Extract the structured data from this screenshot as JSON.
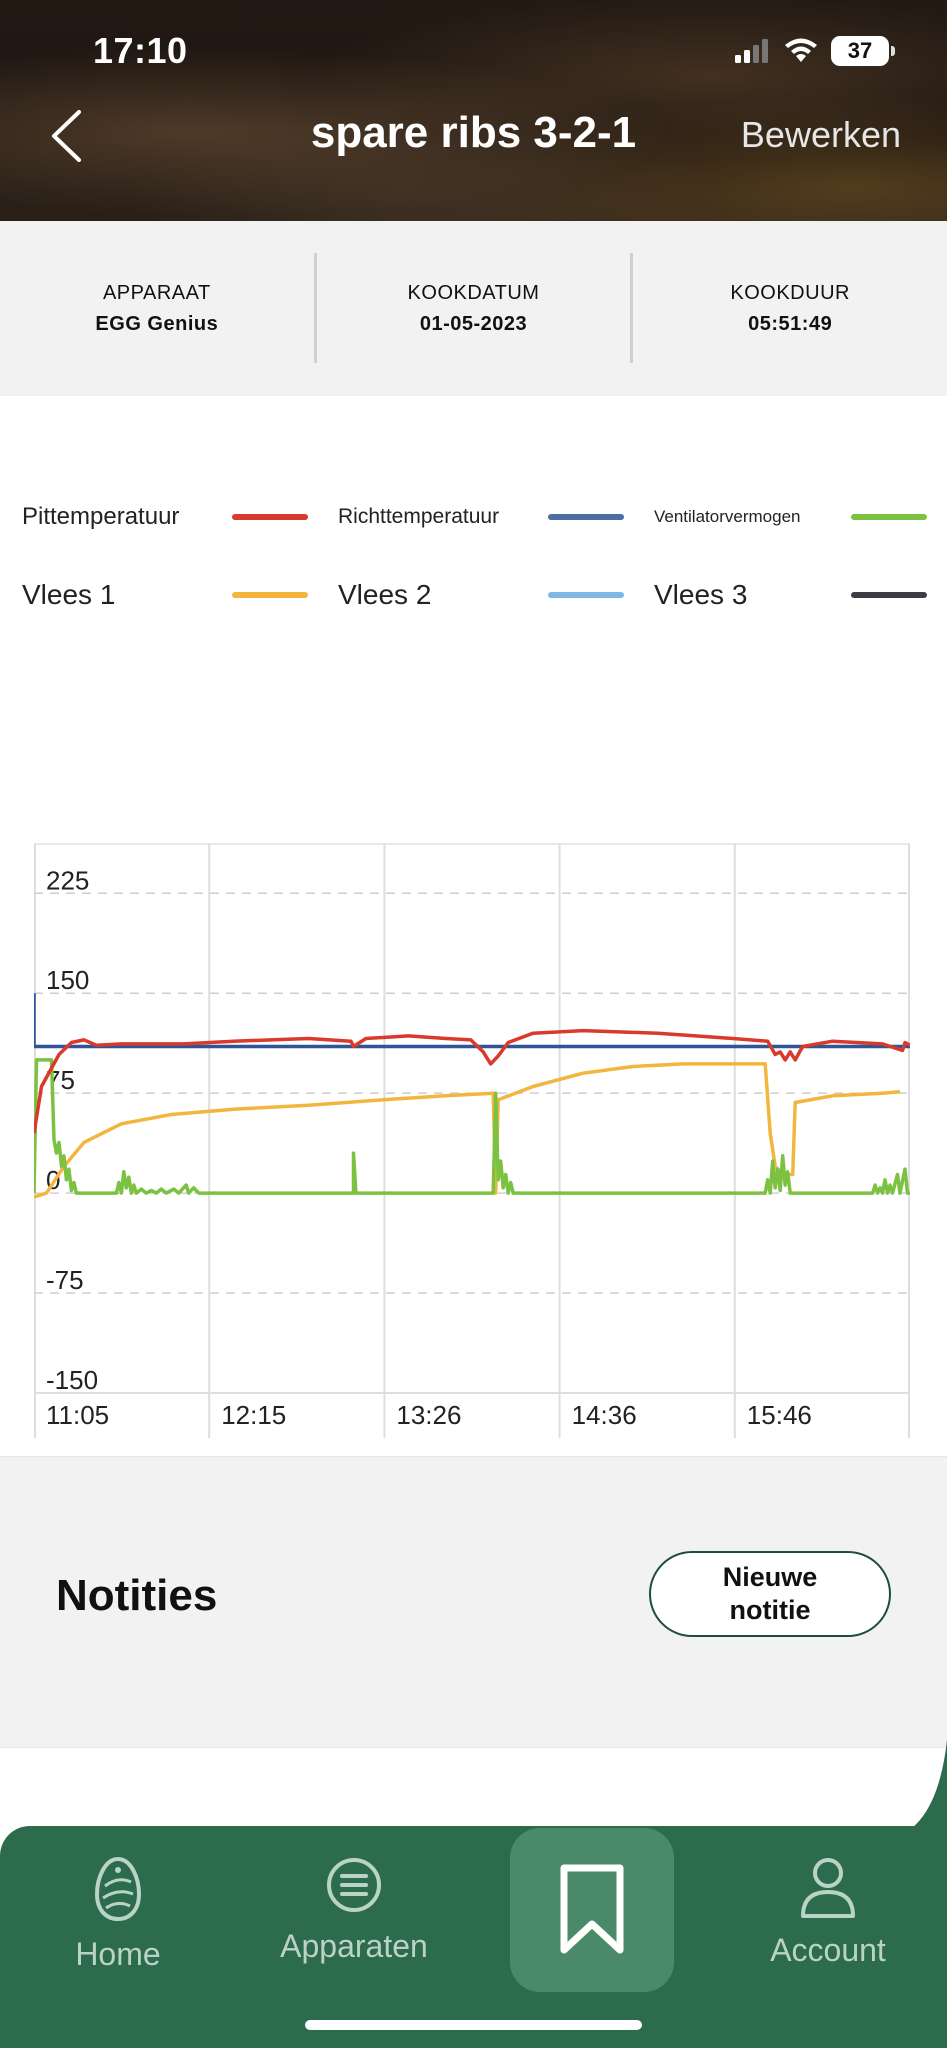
{
  "status_bar": {
    "time": "17:10",
    "battery": "37"
  },
  "header": {
    "title": "spare ribs 3-2-1",
    "edit_label": "Bewerken"
  },
  "info": [
    {
      "label": "APPARAAT",
      "value": "EGG Genius"
    },
    {
      "label": "KOOKDATUM",
      "value": "01-05-2023"
    },
    {
      "label": "KOOKDUUR",
      "value": "05:51:49"
    }
  ],
  "legend": [
    {
      "label": "Pittemperatuur",
      "color": "#d93a2b"
    },
    {
      "label": "Richttemperatuur",
      "color": "#4b6fa5"
    },
    {
      "label": "Ventilatorvermogen",
      "color": "#7cc242"
    },
    {
      "label": "Vlees 1",
      "color": "#f2b63f"
    },
    {
      "label": "Vlees 2",
      "color": "#7fb8e4"
    },
    {
      "label": "Vlees 3",
      "color": "#3a3d42"
    }
  ],
  "chart_data": {
    "type": "line",
    "x_ticks": [
      "11:05",
      "12:15",
      "13:26",
      "14:36",
      "15:46"
    ],
    "x_range_minutes": [
      0,
      351
    ],
    "y_ticks": [
      225,
      150,
      75,
      0,
      -75,
      -150
    ],
    "ylim": [
      -150,
      225
    ],
    "grid": true,
    "legend": "top",
    "series": [
      {
        "name": "Richttemperatuur",
        "color": "#2f5597",
        "points": [
          [
            0,
            150
          ],
          [
            0,
            110
          ],
          [
            351,
            110
          ]
        ]
      },
      {
        "name": "Pittemperatuur",
        "color": "#d93a2b",
        "points": [
          [
            0,
            45
          ],
          [
            3,
            80
          ],
          [
            10,
            104
          ],
          [
            15,
            113
          ],
          [
            20,
            115
          ],
          [
            25,
            111
          ],
          [
            35,
            112
          ],
          [
            60,
            112
          ],
          [
            80,
            114
          ],
          [
            110,
            116
          ],
          [
            127,
            114
          ],
          [
            128,
            110
          ],
          [
            133,
            116
          ],
          [
            150,
            118
          ],
          [
            165,
            116
          ],
          [
            175,
            115
          ],
          [
            180,
            106
          ],
          [
            183,
            97
          ],
          [
            186,
            103
          ],
          [
            190,
            113
          ],
          [
            200,
            120
          ],
          [
            220,
            122
          ],
          [
            250,
            120
          ],
          [
            280,
            116
          ],
          [
            294,
            114
          ],
          [
            297,
            104
          ],
          [
            299,
            106
          ],
          [
            301,
            100
          ],
          [
            303,
            106
          ],
          [
            305,
            100
          ],
          [
            308,
            110
          ],
          [
            320,
            114
          ],
          [
            340,
            112
          ],
          [
            348,
            107
          ],
          [
            349,
            113
          ],
          [
            351,
            111
          ]
        ]
      },
      {
        "name": "Vlees 1",
        "color": "#f2b63f",
        "points": [
          [
            0,
            -3
          ],
          [
            5,
            0
          ],
          [
            12,
            20
          ],
          [
            20,
            38
          ],
          [
            35,
            52
          ],
          [
            55,
            59
          ],
          [
            80,
            63
          ],
          [
            110,
            66
          ],
          [
            140,
            70
          ],
          [
            165,
            73
          ],
          [
            184,
            75
          ],
          [
            185,
            0
          ],
          [
            186,
            70
          ],
          [
            200,
            80
          ],
          [
            220,
            90
          ],
          [
            240,
            95
          ],
          [
            260,
            97
          ],
          [
            293,
            97
          ],
          [
            295,
            45
          ],
          [
            297,
            20
          ],
          [
            300,
            14
          ],
          [
            302,
            14
          ],
          [
            304,
            14
          ],
          [
            305,
            68
          ],
          [
            320,
            73
          ],
          [
            340,
            75
          ],
          [
            347,
            76
          ]
        ]
      },
      {
        "name": "Ventilatorvermogen",
        "color": "#7cc242",
        "points": [
          [
            0,
            0
          ],
          [
            1,
            100
          ],
          [
            7,
            100
          ],
          [
            8,
            40
          ],
          [
            9,
            30
          ],
          [
            10,
            38
          ],
          [
            11,
            20
          ],
          [
            12,
            28
          ],
          [
            13,
            10
          ],
          [
            14,
            18
          ],
          [
            15,
            2
          ],
          [
            16,
            8
          ],
          [
            17,
            0
          ],
          [
            33,
            0
          ],
          [
            34,
            8
          ],
          [
            35,
            0
          ],
          [
            36,
            16
          ],
          [
            37,
            4
          ],
          [
            38,
            12
          ],
          [
            39,
            0
          ],
          [
            40,
            6
          ],
          [
            41,
            0
          ],
          [
            43,
            3
          ],
          [
            45,
            0
          ],
          [
            47,
            2
          ],
          [
            49,
            0
          ],
          [
            51,
            3
          ],
          [
            53,
            0
          ],
          [
            56,
            3
          ],
          [
            58,
            0
          ],
          [
            61,
            6
          ],
          [
            62,
            0
          ],
          [
            64,
            4
          ],
          [
            66,
            0
          ],
          [
            77,
            0
          ],
          [
            80,
            0
          ],
          [
            128,
            0
          ],
          [
            128,
            30
          ],
          [
            129,
            0
          ],
          [
            184,
            0
          ],
          [
            185,
            75
          ],
          [
            186,
            10
          ],
          [
            187,
            24
          ],
          [
            188,
            4
          ],
          [
            189,
            14
          ],
          [
            190,
            0
          ],
          [
            191,
            8
          ],
          [
            192,
            0
          ],
          [
            293,
            0
          ],
          [
            294,
            10
          ],
          [
            295,
            0
          ],
          [
            296,
            24
          ],
          [
            297,
            4
          ],
          [
            298,
            18
          ],
          [
            299,
            2
          ],
          [
            300,
            28
          ],
          [
            301,
            6
          ],
          [
            302,
            16
          ],
          [
            303,
            0
          ],
          [
            336,
            0
          ],
          [
            337,
            6
          ],
          [
            338,
            0
          ],
          [
            339,
            4
          ],
          [
            340,
            0
          ],
          [
            341,
            10
          ],
          [
            342,
            0
          ],
          [
            343,
            6
          ],
          [
            344,
            0
          ],
          [
            346,
            14
          ],
          [
            347,
            0
          ],
          [
            349,
            18
          ],
          [
            350,
            0
          ],
          [
            351,
            0
          ]
        ]
      }
    ]
  },
  "notes": {
    "title": "Notities",
    "new_note_label_line1": "Nieuwe",
    "new_note_label_line2": "notitie"
  },
  "nav": [
    {
      "label": "Home",
      "icon": "egg-icon"
    },
    {
      "label": "Apparaten",
      "icon": "list-circle-icon"
    },
    {
      "label": "",
      "icon": "bookmark-icon"
    },
    {
      "label": "Account",
      "icon": "person-icon"
    }
  ]
}
